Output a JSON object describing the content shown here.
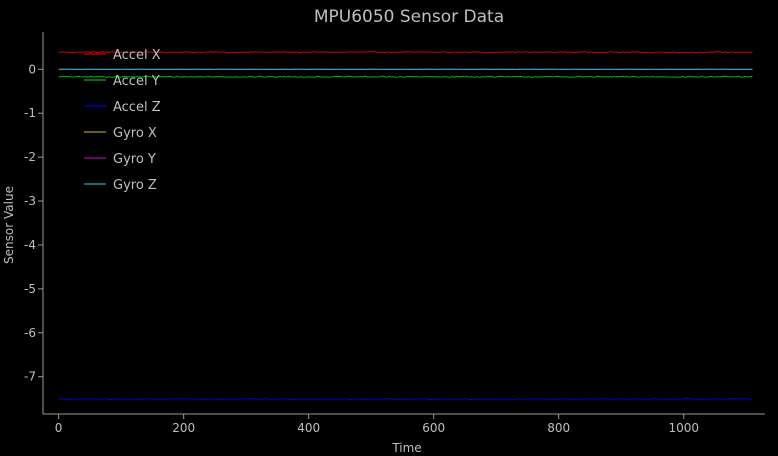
{
  "chart_data": {
    "type": "line",
    "title": "MPU6050 Sensor Data",
    "xlabel": "Time",
    "ylabel": "Sensor Value",
    "xlim": [
      -25,
      1130
    ],
    "ylim": [
      -7.85,
      0.85
    ],
    "x_ticks": [
      0,
      200,
      400,
      600,
      800,
      1000
    ],
    "y_ticks": [
      0,
      -1,
      -2,
      -3,
      -4,
      -5,
      -6,
      -7
    ],
    "grid": false,
    "legend": "top-left",
    "x_range": [
      0,
      1110
    ],
    "series": [
      {
        "name": "Accel X",
        "color": "#cc0000",
        "level": 0.39,
        "noise": 0.012
      },
      {
        "name": "Accel Y",
        "color": "#00b200",
        "level": -0.17,
        "noise": 0.012
      },
      {
        "name": "Accel Z",
        "color": "#0000dd",
        "level": -7.51,
        "noise": 0.012
      },
      {
        "name": "Gyro X",
        "color": "#a59a1e",
        "level": 0.0,
        "noise": 0.003
      },
      {
        "name": "Gyro Y",
        "color": "#b000b0",
        "level": 0.0,
        "noise": 0.003
      },
      {
        "name": "Gyro Z",
        "color": "#1fb0b0",
        "level": 0.0,
        "noise": 0.003
      }
    ]
  }
}
